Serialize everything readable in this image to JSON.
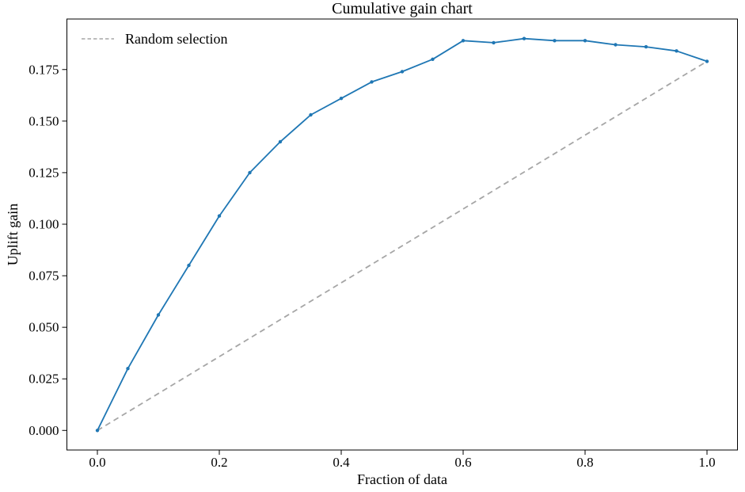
{
  "figure": {
    "title": "Cumulative gain chart",
    "xlabel": "Fraction of data",
    "ylabel": "Uplift gain"
  },
  "legend": {
    "items": [
      {
        "label": "Random selection",
        "line_style": "dashed",
        "color": "#a6a6a6"
      }
    ],
    "position": "upper left",
    "frame": false
  },
  "chart_data": {
    "type": "line",
    "title": "Cumulative gain chart",
    "xlabel": "Fraction of data",
    "ylabel": "Uplift gain",
    "xlim": [
      -0.05,
      1.05
    ],
    "ylim": [
      -0.0095,
      0.1995
    ],
    "grid": false,
    "legend_position": "upper left",
    "x_ticks": [
      0.0,
      0.2,
      0.4,
      0.6,
      0.8,
      1.0
    ],
    "x_tick_labels": [
      "0.0",
      "0.2",
      "0.4",
      "0.6",
      "0.8",
      "1.0"
    ],
    "y_ticks": [
      0.0,
      0.025,
      0.05,
      0.075,
      0.1,
      0.125,
      0.15,
      0.175
    ],
    "y_tick_labels": [
      "0.000",
      "0.025",
      "0.050",
      "0.075",
      "0.100",
      "0.125",
      "0.150",
      "0.175"
    ],
    "series": [
      {
        "id": "uplift-gain-curve",
        "name": "Uplift gain",
        "color": "#1f77b4",
        "style": "solid",
        "markers": true,
        "in_legend": false,
        "x": [
          0.0,
          0.05,
          0.1,
          0.15,
          0.2,
          0.25,
          0.3,
          0.35,
          0.4,
          0.45,
          0.5,
          0.55,
          0.6,
          0.65,
          0.7,
          0.75,
          0.8,
          0.85,
          0.9,
          0.95,
          1.0
        ],
        "y": [
          0.0,
          0.03,
          0.056,
          0.08,
          0.104,
          0.125,
          0.14,
          0.153,
          0.161,
          0.169,
          0.174,
          0.18,
          0.189,
          0.188,
          0.19,
          0.189,
          0.189,
          0.187,
          0.186,
          0.184,
          0.179
        ]
      },
      {
        "id": "random-selection-line",
        "name": "Random selection",
        "color": "#a6a6a6",
        "style": "dashed",
        "markers": false,
        "in_legend": true,
        "x": [
          0.0,
          1.0
        ],
        "y": [
          0.0,
          0.179
        ]
      }
    ]
  }
}
